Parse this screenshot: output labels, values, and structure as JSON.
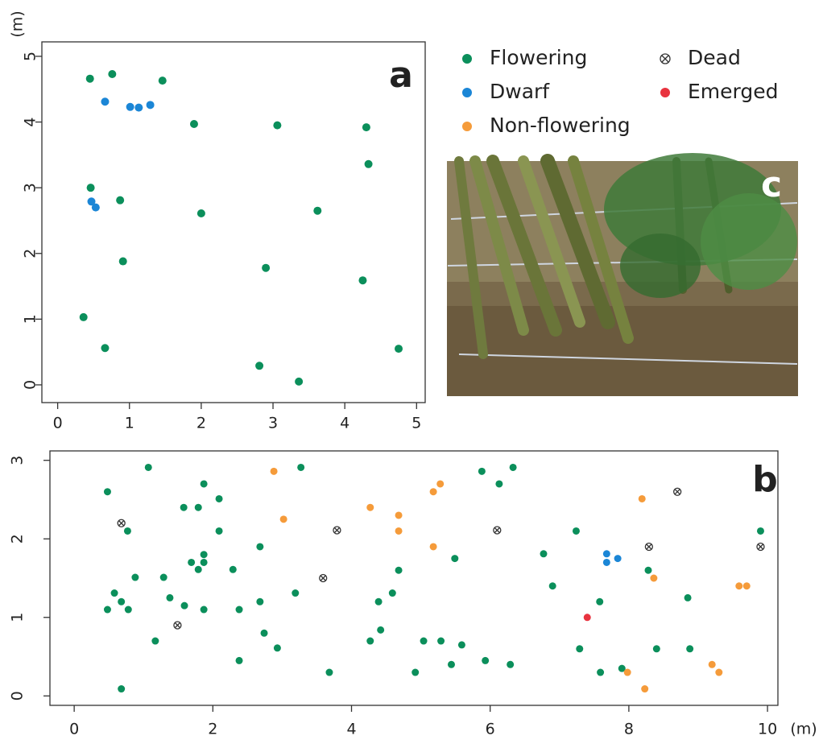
{
  "chart_data": [
    {
      "type": "scatter",
      "annotation": "a",
      "ylabel": "(m)",
      "xlim": [
        -0.22,
        5.12
      ],
      "ylim": [
        -0.27,
        5.22
      ],
      "xticks": [
        0,
        1,
        2,
        3,
        4,
        5
      ],
      "yticks": [
        0,
        1,
        2,
        3,
        4,
        5
      ],
      "series": [
        {
          "color": "#0b8f5b",
          "marker": "dot",
          "x": [
            0.45,
            0.76,
            1.46,
            1.9,
            3.06,
            4.3,
            4.33,
            0.46,
            0.87,
            2.0,
            3.62,
            0.91,
            2.9,
            4.25,
            0.36,
            0.66,
            4.75,
            2.81,
            3.36
          ],
          "values": [
            4.66,
            4.73,
            4.63,
            3.97,
            3.95,
            3.92,
            3.36,
            3.0,
            2.81,
            2.61,
            2.65,
            1.88,
            1.78,
            1.59,
            1.03,
            0.56,
            0.55,
            0.29,
            0.05
          ]
        },
        {
          "color": "#1b86d6",
          "marker": "dot",
          "x": [
            0.66,
            1.01,
            1.13,
            1.29,
            0.47,
            0.53
          ],
          "values": [
            4.31,
            4.23,
            4.22,
            4.26,
            2.79,
            2.7
          ]
        }
      ]
    },
    {
      "type": "scatter",
      "annotation": "b",
      "xlabel": "(m)",
      "xlim": [
        -0.35,
        10.15
      ],
      "ylim": [
        -0.12,
        3.12
      ],
      "xticks": [
        0,
        2,
        4,
        6,
        8,
        10
      ],
      "yticks": [
        0,
        1,
        2,
        3
      ],
      "series": [
        {
          "name": "Flowering",
          "color": "#0b8f5b",
          "marker": "dot",
          "x": [
            0.48,
            1.07,
            0.77,
            1.58,
            1.79,
            1.87,
            2.09,
            2.09,
            1.69,
            1.87,
            1.87,
            1.79,
            2.29,
            0.88,
            1.29,
            0.58,
            1.38,
            0.68,
            1.59,
            0.48,
            0.78,
            1.87,
            1.17,
            0.68,
            2.38,
            2.38,
            2.68,
            2.68,
            2.74,
            2.93,
            3.19,
            3.27,
            3.68,
            4.27,
            4.39,
            4.42,
            4.59,
            4.68,
            4.92,
            5.04,
            5.29,
            5.44,
            5.49,
            5.59,
            5.88,
            6.13,
            6.33,
            5.93,
            6.29,
            6.77,
            6.9,
            7.24,
            7.29,
            7.58,
            7.59,
            7.9,
            8.28,
            8.4,
            8.85,
            8.88,
            9.9
          ],
          "values": [
            2.6,
            2.91,
            2.1,
            2.4,
            2.4,
            2.7,
            2.51,
            2.1,
            1.7,
            1.8,
            1.7,
            1.61,
            1.61,
            1.51,
            1.51,
            1.31,
            1.25,
            1.2,
            1.15,
            1.1,
            1.1,
            1.1,
            0.7,
            0.09,
            1.1,
            0.45,
            1.9,
            1.2,
            0.8,
            0.61,
            1.31,
            2.91,
            0.3,
            0.7,
            1.2,
            0.84,
            1.31,
            1.6,
            0.3,
            0.7,
            0.7,
            0.4,
            1.75,
            0.65,
            2.86,
            2.7,
            2.91,
            0.45,
            0.4,
            1.81,
            1.4,
            2.1,
            0.6,
            1.2,
            0.3,
            0.35,
            1.6,
            0.6,
            1.25,
            0.6,
            2.1
          ]
        },
        {
          "name": "Dwarf",
          "color": "#1b86d6",
          "marker": "dot",
          "x": [
            7.68,
            7.68,
            7.84
          ],
          "values": [
            1.81,
            1.7,
            1.75
          ]
        },
        {
          "name": "Non-flowering",
          "color": "#f59b3a",
          "marker": "dot",
          "x": [
            2.88,
            3.02,
            4.27,
            4.68,
            4.68,
            5.18,
            5.28,
            5.18,
            8.19,
            8.36,
            7.98,
            8.23,
            9.2,
            9.3,
            9.59,
            9.7
          ],
          "values": [
            2.86,
            2.25,
            2.4,
            2.3,
            2.1,
            2.6,
            2.7,
            1.9,
            2.51,
            1.5,
            0.3,
            0.09,
            0.4,
            0.3,
            1.4,
            1.4
          ]
        },
        {
          "name": "Dead",
          "color": "#333333",
          "marker": "x-circle",
          "x": [
            0.68,
            3.79,
            6.1,
            8.7,
            3.59,
            1.49,
            8.29,
            9.9
          ],
          "values": [
            2.2,
            2.11,
            2.11,
            2.6,
            1.5,
            0.9,
            1.9,
            1.9
          ]
        },
        {
          "name": "Emerged",
          "color": "#e8333f",
          "marker": "dot",
          "x": [
            7.4
          ],
          "values": [
            1.0
          ]
        }
      ]
    },
    {
      "type": "photo",
      "annotation": "c"
    }
  ]
}
